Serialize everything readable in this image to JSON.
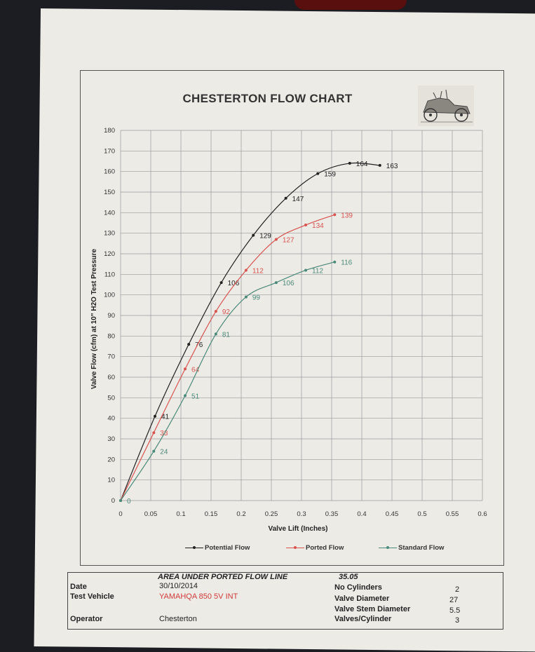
{
  "chart_data": {
    "type": "line",
    "title": "CHESTERTON FLOW CHART",
    "xlabel": "Valve Lift (Inches)",
    "ylabel": "Valve Flow (cfm) at 10\" H2O Test Pressure",
    "xlim": [
      0,
      0.6
    ],
    "ylim": [
      0,
      180
    ],
    "x_ticks": [
      "0",
      "0.05",
      "0.1",
      "0.15",
      "0.2",
      "0.25",
      "0.3",
      "0.35",
      "0.4",
      "0.45",
      "0.5",
      "0.55",
      "0.6"
    ],
    "y_ticks": [
      "0",
      "10",
      "20",
      "30",
      "40",
      "50",
      "60",
      "70",
      "80",
      "90",
      "100",
      "110",
      "120",
      "130",
      "140",
      "150",
      "160",
      "170",
      "180"
    ],
    "grid": true,
    "legend_position": "bottom",
    "series": [
      {
        "name": "Potential Flow",
        "color": "#222222",
        "x": [
          0,
          0.057,
          0.113,
          0.167,
          0.22,
          0.274,
          0.327,
          0.38,
          0.43
        ],
        "y": [
          0,
          41,
          76,
          106,
          129,
          147,
          159,
          164,
          163
        ],
        "labels": [
          "",
          "41",
          "76",
          "106",
          "129",
          "147",
          "159",
          "164",
          "163"
        ]
      },
      {
        "name": "Ported Flow",
        "color": "#d9534f",
        "x": [
          0,
          0.055,
          0.107,
          0.158,
          0.208,
          0.258,
          0.307,
          0.355
        ],
        "y": [
          0,
          33,
          64,
          92,
          112,
          127,
          134,
          139
        ],
        "labels": [
          "",
          "33",
          "64",
          "92",
          "112",
          "127",
          "134",
          "139"
        ]
      },
      {
        "name": "Standard Flow",
        "color": "#4a8a7a",
        "x": [
          0,
          0.055,
          0.107,
          0.158,
          0.208,
          0.258,
          0.307,
          0.355
        ],
        "y": [
          0,
          24,
          51,
          81,
          99,
          106,
          112,
          116
        ],
        "labels": [
          "0",
          "24",
          "51",
          "81",
          "99",
          "106",
          "112",
          "116"
        ]
      }
    ]
  },
  "info": {
    "area_label": "AREA UNDER PORTED FLOW LINE",
    "area_value": "35.05",
    "date_label": "Date",
    "date_value": "30/10/2014",
    "vehicle_label": "Test Vehicle",
    "vehicle_value": "YAMAHQA 850 5V INT",
    "operator_label": "Operator",
    "operator_value": "Chesterton",
    "cyl_label": "No Cylinders",
    "cyl_value": "2",
    "vd_label": "Valve Diameter",
    "vd_value": "27",
    "vsd_label": "Valve Stem Diameter",
    "vsd_value": "5.5",
    "vpc_label": "Valves/Cylinder",
    "vpc_value": "3"
  }
}
